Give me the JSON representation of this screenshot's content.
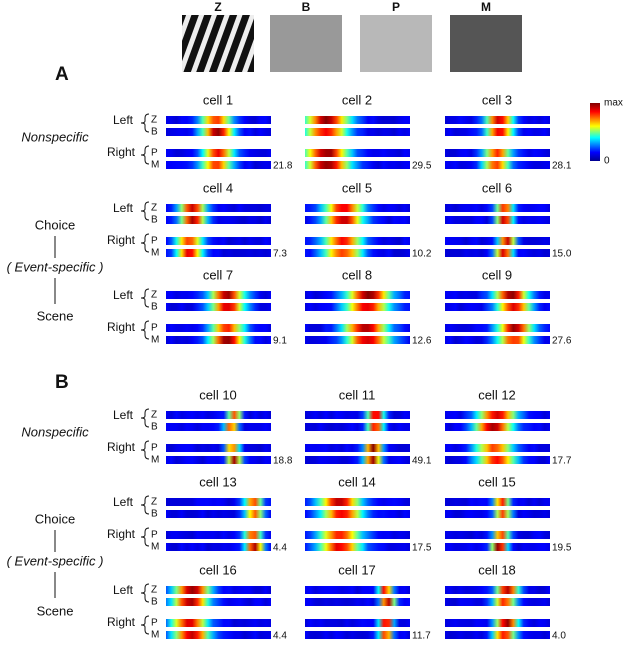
{
  "stimuli": [
    "Z",
    "B",
    "P",
    "M"
  ],
  "sides": [
    "Left",
    "Right"
  ],
  "colorbar": {
    "max": "max",
    "min": 0
  },
  "panels": [
    {
      "label": "A",
      "nonspecific": "Nonspecific",
      "event": [
        "Choice",
        "( Event-specific )",
        "Scene"
      ],
      "rows": [
        [
          {
            "name": "cell 1",
            "peak": "21.8"
          },
          {
            "name": "cell 2",
            "peak": "29.5"
          },
          {
            "name": "cell 3",
            "peak": "28.1"
          }
        ],
        [
          {
            "name": "cell 4",
            "peak": "7.3"
          },
          {
            "name": "cell 5",
            "peak": "10.2"
          },
          {
            "name": "cell 6",
            "peak": "15.0"
          }
        ],
        [
          {
            "name": "cell 7",
            "peak": "9.1"
          },
          {
            "name": "cell 8",
            "peak": "12.6"
          },
          {
            "name": "cell 9",
            "peak": "27.6"
          }
        ]
      ]
    },
    {
      "label": "B",
      "nonspecific": "Nonspecific",
      "event": [
        "Choice",
        "( Event-specific )",
        "Scene"
      ],
      "rows": [
        [
          {
            "name": "cell 10",
            "peak": "18.8"
          },
          {
            "name": "cell 11",
            "peak": "49.1"
          },
          {
            "name": "cell 12",
            "peak": "17.7"
          }
        ],
        [
          {
            "name": "cell 13",
            "peak": "4.4"
          },
          {
            "name": "cell 14",
            "peak": "17.5"
          },
          {
            "name": "cell 15",
            "peak": "19.5"
          }
        ],
        [
          {
            "name": "cell 16",
            "peak": "4.4"
          },
          {
            "name": "cell 17",
            "peak": "11.7"
          },
          {
            "name": "cell 18",
            "peak": "4.0"
          }
        ]
      ]
    }
  ]
}
